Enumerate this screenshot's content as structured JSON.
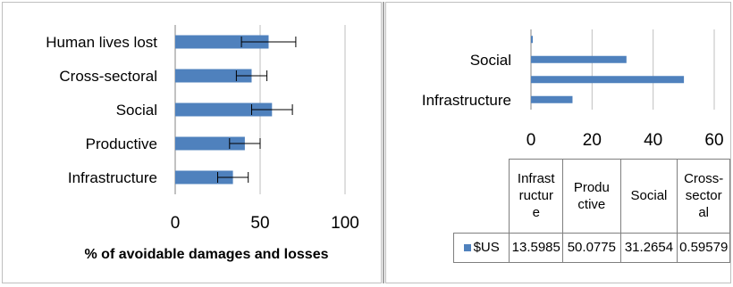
{
  "colors": {
    "bar": "#4f81bd",
    "error_bar": "#000000",
    "grid": "#bfbfbf"
  },
  "chart_data": [
    {
      "type": "bar",
      "orientation": "horizontal",
      "categories": [
        "Infrastructure",
        "Productive",
        "Social",
        "Cross-sectoral",
        "Human lives lost"
      ],
      "values": [
        34,
        41,
        57,
        45,
        55
      ],
      "error": [
        9,
        9,
        12,
        9,
        16
      ],
      "xlabel": "% of avoidable damages and losses",
      "xlim": [
        0,
        100
      ],
      "xticks": [
        "0",
        "50",
        "100"
      ],
      "grid": true,
      "legend": "none"
    },
    {
      "type": "bar",
      "orientation": "horizontal",
      "categories": [
        "Infrastructure",
        "Productive",
        "Social",
        "Cross-sectoral"
      ],
      "y_tick_labels": [
        "Infrastructure",
        "Social"
      ],
      "series": [
        {
          "name": "$US",
          "values": [
            13.5985,
            50.0775,
            31.2654,
            0.59579
          ]
        }
      ],
      "xlim": [
        0,
        60
      ],
      "xticks": [
        "0",
        "20",
        "40",
        "60"
      ],
      "data_table": {
        "headers": [
          "Infrast\nructur\ne",
          "Produ\nctive",
          "Social",
          "Cross-\nsector\nal"
        ],
        "row_label": "$US",
        "row_values": [
          "13.5985",
          "50.0775",
          "31.2654",
          "0.59579"
        ]
      },
      "grid": true,
      "legend": "data table"
    }
  ]
}
